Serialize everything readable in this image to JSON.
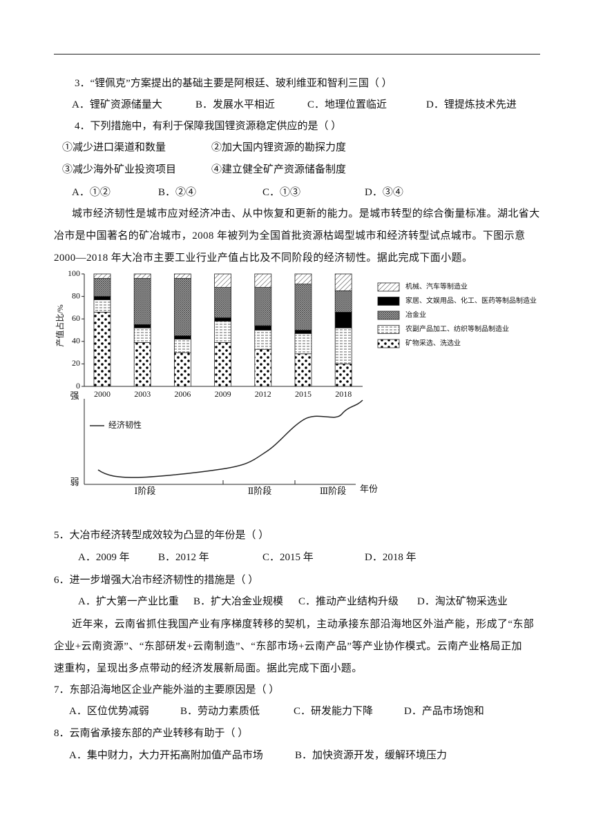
{
  "questions": [
    {
      "stem": "3．“锂佩克”方案提出的基础主要是阿根廷、玻利维亚和智利三国（ ）",
      "options": [
        "A．锂矿资源储量大",
        "B．发展水平相近",
        "C．地理位置临近",
        "D．锂提炼技术先进"
      ]
    },
    {
      "stem": "4．下列措施中，有利于保障我国锂资源稳定供应的是（ ）",
      "items": [
        "①减少进口渠道和数量",
        "②加大国内锂资源的勘探力度",
        "③减少海外矿业投资项目",
        "④建立健全矿产资源储备制度"
      ],
      "options": [
        "A．①②",
        "B．②④",
        "C．①③",
        "D．③④"
      ]
    },
    {
      "stem": "5．大冶市经济转型成效较为凸显的年份是（ ）",
      "options": [
        "A．2009 年",
        "B．2012 年",
        "C．2015 年",
        "D．2018 年"
      ]
    },
    {
      "stem": "6．进一步增强大冶市经济韧性的措施是（ ）",
      "options": [
        "A．扩大第一产业比重",
        "B．扩大冶金业规模",
        "C．推动产业结构升级",
        "D．淘汰矿物采选业"
      ]
    },
    {
      "stem": "7．东部沿海地区企业产能外溢的主要原因是（ ）",
      "options": [
        "A．区位优势减弱",
        "B．劳动力素质低",
        "C．研发能力下降",
        "D．产品市场饱和"
      ]
    },
    {
      "stem": "8．云南省承接东部的产业转移有助于（ ）",
      "options": [
        "A．集中财力，大力开拓高附加值产品市场",
        "B．加快资源开发，缓解环境压力"
      ]
    }
  ],
  "passages": [
    {
      "lines": [
        "城市经济韧性是城市应对经济冲击、从中恢复和更新的能力。是城市转型的综合衡量标准。湖北省大",
        "冶市是中国著名的矿冶城市，2008 年被列为全国首批资源枯竭型城市和经济转型试点城市。下图示意",
        "2000—2018 年大冶市主要工业行业产值占比及不同阶段的经济韧性。据此完成下面小题。"
      ]
    },
    {
      "lines": [
        "近年来，云南省抓住我国产业有序梯度转移的契机，主动承接东部沿海地区外溢产能，形成了“东部",
        "企业+云南资源”、“东部研发+云南制造”、“东部市场+云南产品”等产业协作模式。云南产业格局正加",
        "速重构，呈现出多点带动的经济发展新局面。据此完成下面小题。"
      ]
    }
  ],
  "chart_data": {
    "type": "bar",
    "stacked": true,
    "y_label": "产值占比/%",
    "categories": [
      "2000",
      "2003",
      "2006",
      "2009",
      "2012",
      "2015",
      "2018"
    ],
    "series": [
      {
        "name": "机械、汽车等制造业",
        "values": [
          4,
          4,
          4,
          12,
          12,
          9,
          15
        ]
      },
      {
        "name": "家居、文娱用品、化工、医药等制品制造业",
        "values": [
          3,
          3,
          3,
          3,
          4,
          3,
          14
        ]
      },
      {
        "name": "冶金业",
        "values": [
          16,
          41,
          51,
          27,
          34,
          41,
          19
        ]
      },
      {
        "name": "农副产品加工、纺织等制品制造业",
        "values": [
          11,
          13,
          12,
          19,
          17,
          18,
          32
        ]
      },
      {
        "name": "矿物采选、洗选业",
        "values": [
          66,
          39,
          30,
          39,
          33,
          29,
          20
        ]
      }
    ],
    "ylim": [
      0,
      100
    ],
    "yticks": [
      0,
      20,
      40,
      60,
      80,
      100
    ]
  },
  "resilience_diagram": {
    "legend": "经济韧性",
    "y_top": "强",
    "y_bottom": "弱",
    "stages": [
      "Ⅰ阶段",
      "Ⅱ阶段",
      "Ⅲ阶段"
    ],
    "x_label": "年份"
  }
}
